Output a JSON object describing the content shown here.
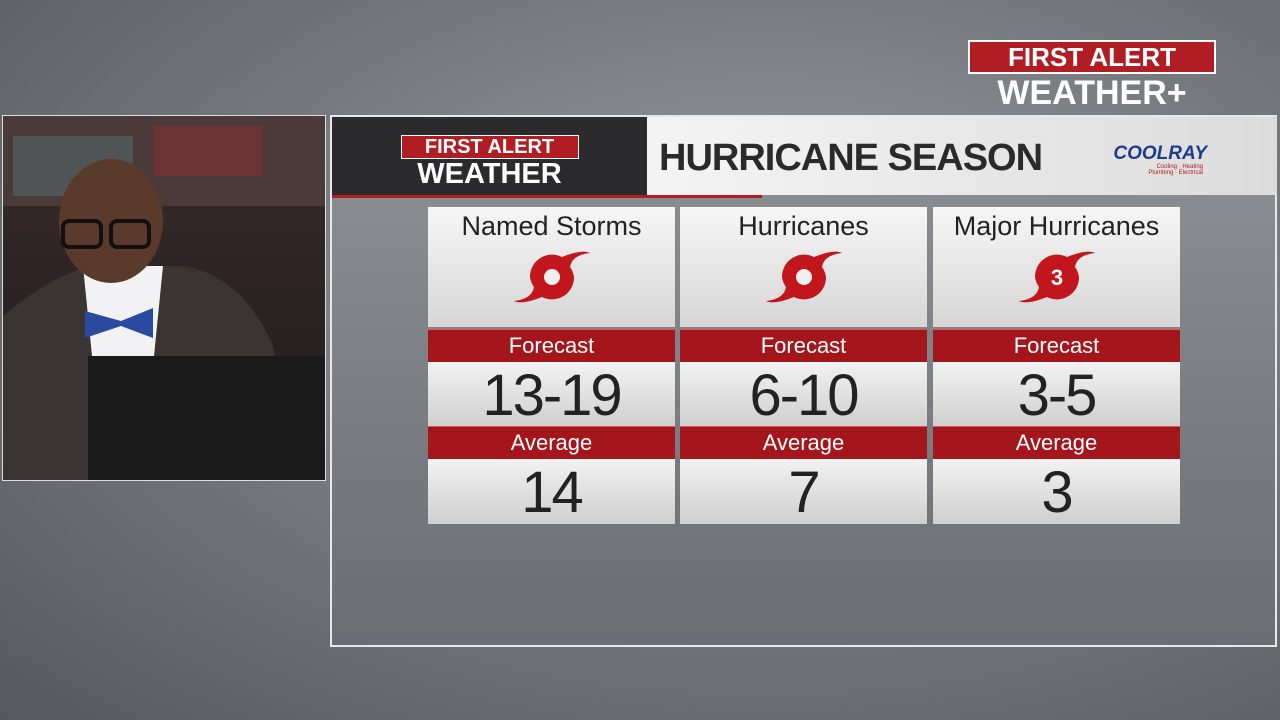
{
  "brand": {
    "line1": "FIRST ALERT",
    "line2": "WEATHER+"
  },
  "panel": {
    "logo_line1": "FIRST ALERT",
    "logo_line2": "WEATHER",
    "title": "HURRICANE SEASON",
    "sponsor": "COOLRAY",
    "sponsor_tagline": "Cooling · Heating Plumbing · Electrical"
  },
  "columns": [
    {
      "name": "Named Storms",
      "forecast_label": "Forecast",
      "forecast": "13-19",
      "average_label": "Average",
      "average": 14
    },
    {
      "name": "Hurricanes",
      "forecast_label": "Forecast",
      "forecast": "6-10",
      "average_label": "Average",
      "average": 7
    },
    {
      "name": "Major Hurricanes",
      "icon_label": "3",
      "forecast_label": "Forecast",
      "forecast": "3-5",
      "average_label": "Average",
      "average": 3
    }
  ]
}
